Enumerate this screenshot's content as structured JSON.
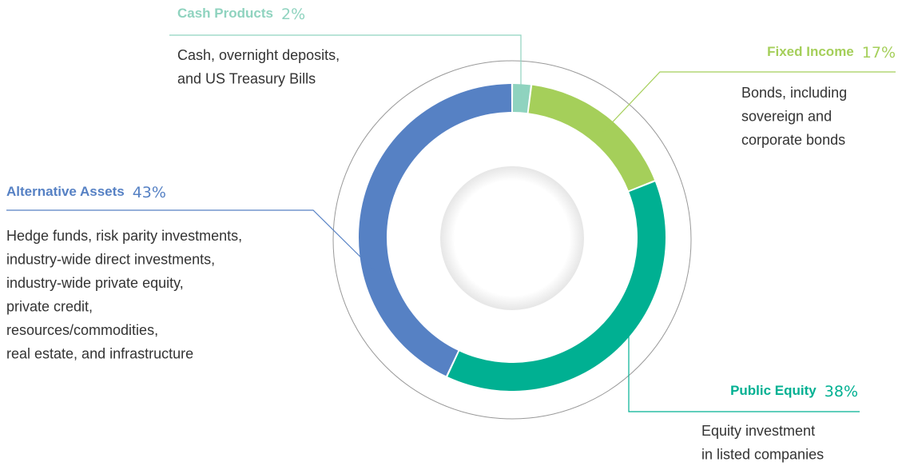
{
  "chart_data": {
    "type": "donut",
    "categories": [
      "Cash Products",
      "Fixed Income",
      "Public Equity",
      "Alternative Assets"
    ],
    "values": [
      2,
      17,
      38,
      43
    ],
    "value_labels": [
      "2%",
      "17%",
      "38%",
      "43%"
    ],
    "colors": [
      "#8fd3bf",
      "#a5cf5a",
      "#00b092",
      "#5681c4"
    ],
    "descriptions": [
      [
        "Cash, overnight deposits,",
        "and US Treasury Bills"
      ],
      [
        "Bonds, including",
        "sovereign and",
        "corporate bonds"
      ],
      [
        "Equity investment",
        "in listed companies"
      ],
      [
        "Hedge funds, risk parity investments,",
        "industry-wide direct investments,",
        "industry-wide private equity,",
        "private credit,",
        "resources/commodities,",
        "real estate, and infrastructure"
      ]
    ]
  }
}
